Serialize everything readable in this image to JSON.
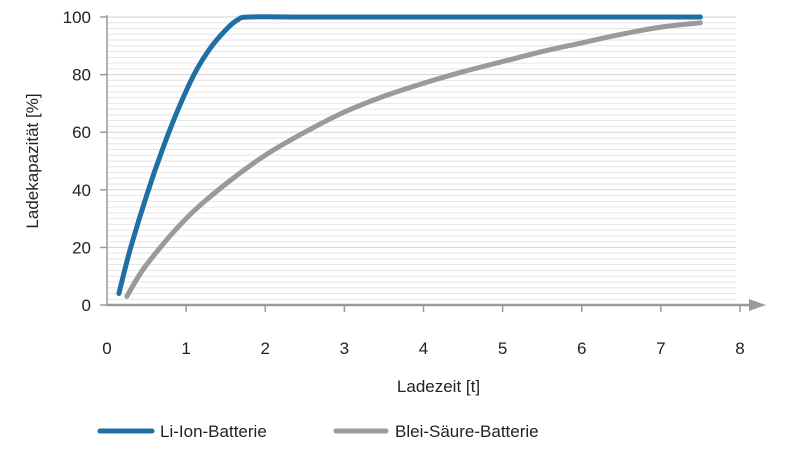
{
  "chart_data": {
    "type": "line",
    "xlabel": "Ladezeit [t]",
    "ylabel": "Ladekapazität [%]",
    "xlim": [
      0,
      8
    ],
    "ylim": [
      0,
      100
    ],
    "x_ticks": [
      0,
      1,
      2,
      3,
      4,
      5,
      6,
      7,
      8
    ],
    "y_ticks": [
      0,
      20,
      40,
      60,
      80,
      100
    ],
    "grid": true,
    "legend_position": "bottom",
    "series": [
      {
        "name": "Li-Ion-Batterie",
        "color": "#1f6fa3",
        "points": [
          [
            0.15,
            4
          ],
          [
            0.3,
            20
          ],
          [
            0.5,
            38
          ],
          [
            0.7,
            54
          ],
          [
            0.9,
            68
          ],
          [
            1.1,
            80
          ],
          [
            1.3,
            89
          ],
          [
            1.5,
            95.5
          ],
          [
            1.65,
            99
          ],
          [
            1.8,
            100
          ],
          [
            2.5,
            100
          ],
          [
            4.0,
            100
          ],
          [
            5.5,
            100
          ],
          [
            7.5,
            100
          ]
        ]
      },
      {
        "name": "Blei-Säure-Batterie",
        "color": "#9a9a9a",
        "points": [
          [
            0.25,
            3
          ],
          [
            0.5,
            14
          ],
          [
            1.0,
            30
          ],
          [
            1.5,
            42
          ],
          [
            2.0,
            52
          ],
          [
            2.5,
            60
          ],
          [
            3.0,
            67
          ],
          [
            3.5,
            72.5
          ],
          [
            4.0,
            77
          ],
          [
            4.5,
            81
          ],
          [
            5.0,
            84.5
          ],
          [
            5.5,
            88
          ],
          [
            6.0,
            91
          ],
          [
            6.5,
            94
          ],
          [
            7.0,
            96.5
          ],
          [
            7.5,
            98
          ]
        ]
      }
    ]
  }
}
